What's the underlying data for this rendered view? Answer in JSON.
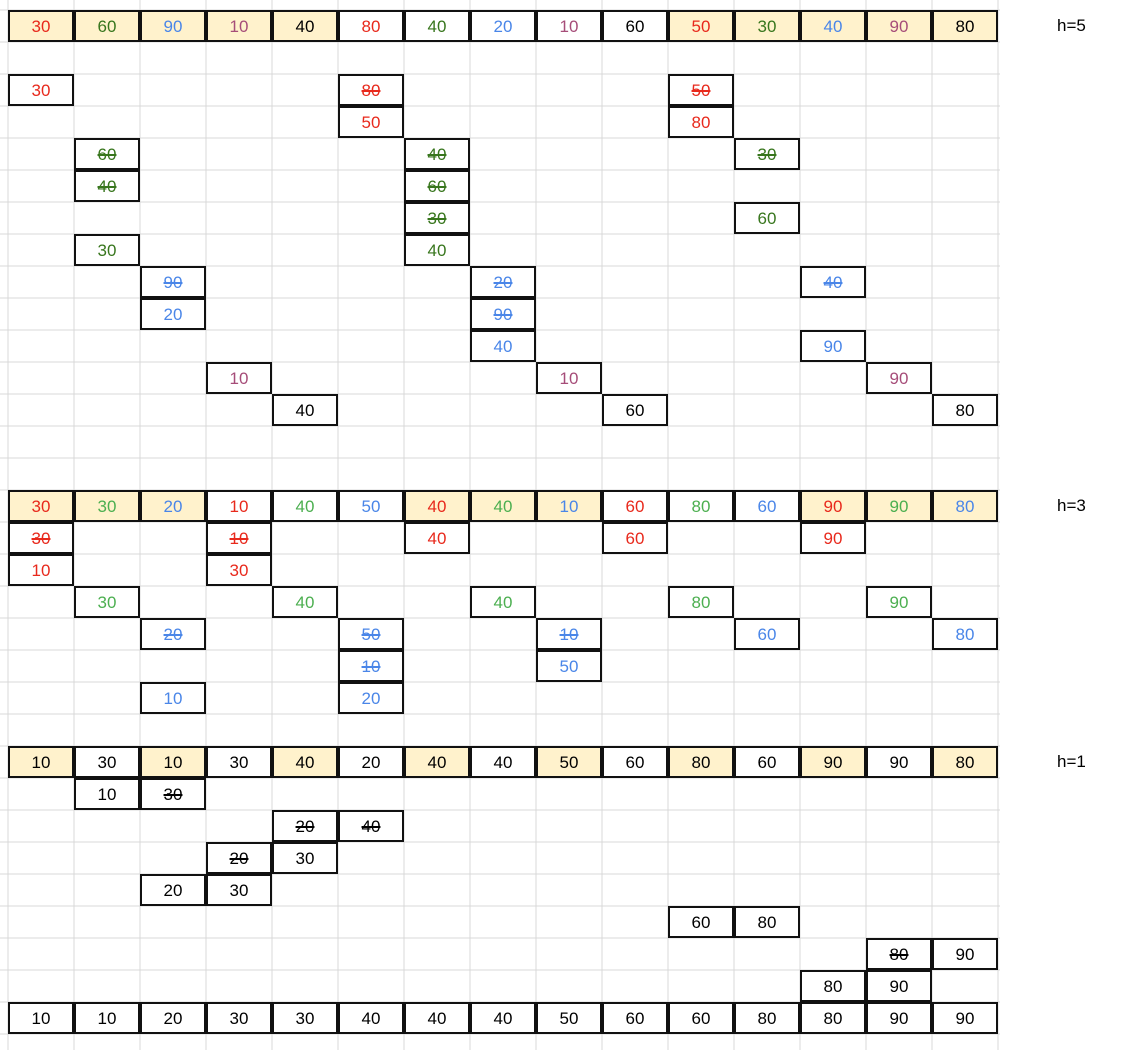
{
  "colors": {
    "red": "#e8291c",
    "olive": "#38761d",
    "green": "#4caf50",
    "blue": "#4a86e8",
    "purple": "#a64d79",
    "black": "#000000",
    "highlight": "#fff2cc",
    "grid": "#d9d9d9",
    "border": "#111111"
  },
  "passes": [
    {
      "label": "h=5",
      "row": 0,
      "input": [
        {
          "v": "30",
          "c": "red",
          "hl": true
        },
        {
          "v": "60",
          "c": "olive",
          "hl": true
        },
        {
          "v": "90",
          "c": "blue",
          "hl": true
        },
        {
          "v": "10",
          "c": "purple",
          "hl": true
        },
        {
          "v": "40",
          "c": "black",
          "hl": true
        },
        {
          "v": "80",
          "c": "red",
          "hl": false
        },
        {
          "v": "40",
          "c": "olive",
          "hl": false
        },
        {
          "v": "20",
          "c": "blue",
          "hl": false
        },
        {
          "v": "10",
          "c": "purple",
          "hl": false
        },
        {
          "v": "60",
          "c": "black",
          "hl": false
        },
        {
          "v": "50",
          "c": "red",
          "hl": true
        },
        {
          "v": "30",
          "c": "olive",
          "hl": true
        },
        {
          "v": "40",
          "c": "blue",
          "hl": true
        },
        {
          "v": "90",
          "c": "purple",
          "hl": true
        },
        {
          "v": "80",
          "c": "black",
          "hl": true
        }
      ],
      "steps": [
        {
          "col": 0,
          "row": 2,
          "v": "30",
          "c": "red",
          "s": false
        },
        {
          "col": 5,
          "row": 2,
          "v": "80",
          "c": "red",
          "s": true
        },
        {
          "col": 5,
          "row": 3,
          "v": "50",
          "c": "red",
          "s": false
        },
        {
          "col": 10,
          "row": 2,
          "v": "50",
          "c": "red",
          "s": true
        },
        {
          "col": 10,
          "row": 3,
          "v": "80",
          "c": "red",
          "s": false
        },
        {
          "col": 1,
          "row": 4,
          "v": "60",
          "c": "olive",
          "s": true
        },
        {
          "col": 1,
          "row": 5,
          "v": "40",
          "c": "olive",
          "s": true
        },
        {
          "col": 1,
          "row": 7,
          "v": "30",
          "c": "olive",
          "s": false
        },
        {
          "col": 6,
          "row": 4,
          "v": "40",
          "c": "olive",
          "s": true
        },
        {
          "col": 6,
          "row": 5,
          "v": "60",
          "c": "olive",
          "s": true
        },
        {
          "col": 6,
          "row": 6,
          "v": "30",
          "c": "olive",
          "s": true
        },
        {
          "col": 6,
          "row": 7,
          "v": "40",
          "c": "olive",
          "s": false
        },
        {
          "col": 11,
          "row": 4,
          "v": "30",
          "c": "olive",
          "s": true
        },
        {
          "col": 11,
          "row": 6,
          "v": "60",
          "c": "olive",
          "s": false
        },
        {
          "col": 2,
          "row": 8,
          "v": "90",
          "c": "blue",
          "s": true
        },
        {
          "col": 2,
          "row": 9,
          "v": "20",
          "c": "blue",
          "s": false
        },
        {
          "col": 7,
          "row": 8,
          "v": "20",
          "c": "blue",
          "s": true
        },
        {
          "col": 7,
          "row": 9,
          "v": "90",
          "c": "blue",
          "s": true
        },
        {
          "col": 7,
          "row": 10,
          "v": "40",
          "c": "blue",
          "s": false
        },
        {
          "col": 12,
          "row": 8,
          "v": "40",
          "c": "blue",
          "s": true
        },
        {
          "col": 12,
          "row": 10,
          "v": "90",
          "c": "blue",
          "s": false
        },
        {
          "col": 3,
          "row": 11,
          "v": "10",
          "c": "purple",
          "s": false
        },
        {
          "col": 8,
          "row": 11,
          "v": "10",
          "c": "purple",
          "s": false
        },
        {
          "col": 13,
          "row": 11,
          "v": "90",
          "c": "purple",
          "s": false
        },
        {
          "col": 4,
          "row": 12,
          "v": "40",
          "c": "black",
          "s": false
        },
        {
          "col": 9,
          "row": 12,
          "v": "60",
          "c": "black",
          "s": false
        },
        {
          "col": 14,
          "row": 12,
          "v": "80",
          "c": "black",
          "s": false
        }
      ]
    },
    {
      "label": "h=3",
      "row": 15,
      "input": [
        {
          "v": "30",
          "c": "red",
          "hl": true
        },
        {
          "v": "30",
          "c": "green",
          "hl": true
        },
        {
          "v": "20",
          "c": "blue",
          "hl": true
        },
        {
          "v": "10",
          "c": "red",
          "hl": false
        },
        {
          "v": "40",
          "c": "green",
          "hl": false
        },
        {
          "v": "50",
          "c": "blue",
          "hl": false
        },
        {
          "v": "40",
          "c": "red",
          "hl": true
        },
        {
          "v": "40",
          "c": "green",
          "hl": true
        },
        {
          "v": "10",
          "c": "blue",
          "hl": true
        },
        {
          "v": "60",
          "c": "red",
          "hl": false
        },
        {
          "v": "80",
          "c": "green",
          "hl": false
        },
        {
          "v": "60",
          "c": "blue",
          "hl": false
        },
        {
          "v": "90",
          "c": "red",
          "hl": true
        },
        {
          "v": "90",
          "c": "green",
          "hl": true
        },
        {
          "v": "80",
          "c": "blue",
          "hl": true
        }
      ],
      "steps": [
        {
          "col": 0,
          "row": 16,
          "v": "30",
          "c": "red",
          "s": true
        },
        {
          "col": 0,
          "row": 17,
          "v": "10",
          "c": "red",
          "s": false
        },
        {
          "col": 3,
          "row": 16,
          "v": "10",
          "c": "red",
          "s": true
        },
        {
          "col": 3,
          "row": 17,
          "v": "30",
          "c": "red",
          "s": false
        },
        {
          "col": 6,
          "row": 16,
          "v": "40",
          "c": "red",
          "s": false
        },
        {
          "col": 9,
          "row": 16,
          "v": "60",
          "c": "red",
          "s": false
        },
        {
          "col": 12,
          "row": 16,
          "v": "90",
          "c": "red",
          "s": false
        },
        {
          "col": 1,
          "row": 18,
          "v": "30",
          "c": "green",
          "s": false
        },
        {
          "col": 4,
          "row": 18,
          "v": "40",
          "c": "green",
          "s": false
        },
        {
          "col": 7,
          "row": 18,
          "v": "40",
          "c": "green",
          "s": false
        },
        {
          "col": 10,
          "row": 18,
          "v": "80",
          "c": "green",
          "s": false
        },
        {
          "col": 13,
          "row": 18,
          "v": "90",
          "c": "green",
          "s": false
        },
        {
          "col": 2,
          "row": 19,
          "v": "20",
          "c": "blue",
          "s": true
        },
        {
          "col": 2,
          "row": 21,
          "v": "10",
          "c": "blue",
          "s": false
        },
        {
          "col": 5,
          "row": 19,
          "v": "50",
          "c": "blue",
          "s": true
        },
        {
          "col": 5,
          "row": 20,
          "v": "10",
          "c": "blue",
          "s": true
        },
        {
          "col": 5,
          "row": 21,
          "v": "20",
          "c": "blue",
          "s": false
        },
        {
          "col": 8,
          "row": 19,
          "v": "10",
          "c": "blue",
          "s": true
        },
        {
          "col": 8,
          "row": 20,
          "v": "50",
          "c": "blue",
          "s": false
        },
        {
          "col": 11,
          "row": 19,
          "v": "60",
          "c": "blue",
          "s": false
        },
        {
          "col": 14,
          "row": 19,
          "v": "80",
          "c": "blue",
          "s": false
        }
      ]
    },
    {
      "label": "h=1",
      "row": 23,
      "input": [
        {
          "v": "10",
          "c": "black",
          "hl": true
        },
        {
          "v": "30",
          "c": "black",
          "hl": false
        },
        {
          "v": "10",
          "c": "black",
          "hl": true
        },
        {
          "v": "30",
          "c": "black",
          "hl": false
        },
        {
          "v": "40",
          "c": "black",
          "hl": true
        },
        {
          "v": "20",
          "c": "black",
          "hl": false
        },
        {
          "v": "40",
          "c": "black",
          "hl": true
        },
        {
          "v": "40",
          "c": "black",
          "hl": false
        },
        {
          "v": "50",
          "c": "black",
          "hl": true
        },
        {
          "v": "60",
          "c": "black",
          "hl": false
        },
        {
          "v": "80",
          "c": "black",
          "hl": true
        },
        {
          "v": "60",
          "c": "black",
          "hl": false
        },
        {
          "v": "90",
          "c": "black",
          "hl": true
        },
        {
          "v": "90",
          "c": "black",
          "hl": false
        },
        {
          "v": "80",
          "c": "black",
          "hl": true
        }
      ],
      "steps": [
        {
          "col": 1,
          "row": 24,
          "v": "10",
          "c": "black",
          "s": false
        },
        {
          "col": 2,
          "row": 24,
          "v": "30",
          "c": "black",
          "s": true
        },
        {
          "col": 4,
          "row": 25,
          "v": "20",
          "c": "black",
          "s": true
        },
        {
          "col": 5,
          "row": 25,
          "v": "40",
          "c": "black",
          "s": true
        },
        {
          "col": 3,
          "row": 26,
          "v": "20",
          "c": "black",
          "s": true
        },
        {
          "col": 4,
          "row": 26,
          "v": "30",
          "c": "black",
          "s": false
        },
        {
          "col": 2,
          "row": 27,
          "v": "20",
          "c": "black",
          "s": false
        },
        {
          "col": 3,
          "row": 27,
          "v": "30",
          "c": "black",
          "s": false
        },
        {
          "col": 10,
          "row": 28,
          "v": "60",
          "c": "black",
          "s": false
        },
        {
          "col": 11,
          "row": 28,
          "v": "80",
          "c": "black",
          "s": false
        },
        {
          "col": 13,
          "row": 29,
          "v": "80",
          "c": "black",
          "s": true
        },
        {
          "col": 14,
          "row": 29,
          "v": "90",
          "c": "black",
          "s": false
        },
        {
          "col": 12,
          "row": 30,
          "v": "80",
          "c": "black",
          "s": false
        },
        {
          "col": 13,
          "row": 30,
          "v": "90",
          "c": "black",
          "s": false
        }
      ]
    }
  ],
  "result": {
    "row": 31,
    "values": [
      "10",
      "10",
      "20",
      "30",
      "30",
      "40",
      "40",
      "40",
      "50",
      "60",
      "60",
      "80",
      "80",
      "90",
      "90"
    ]
  }
}
